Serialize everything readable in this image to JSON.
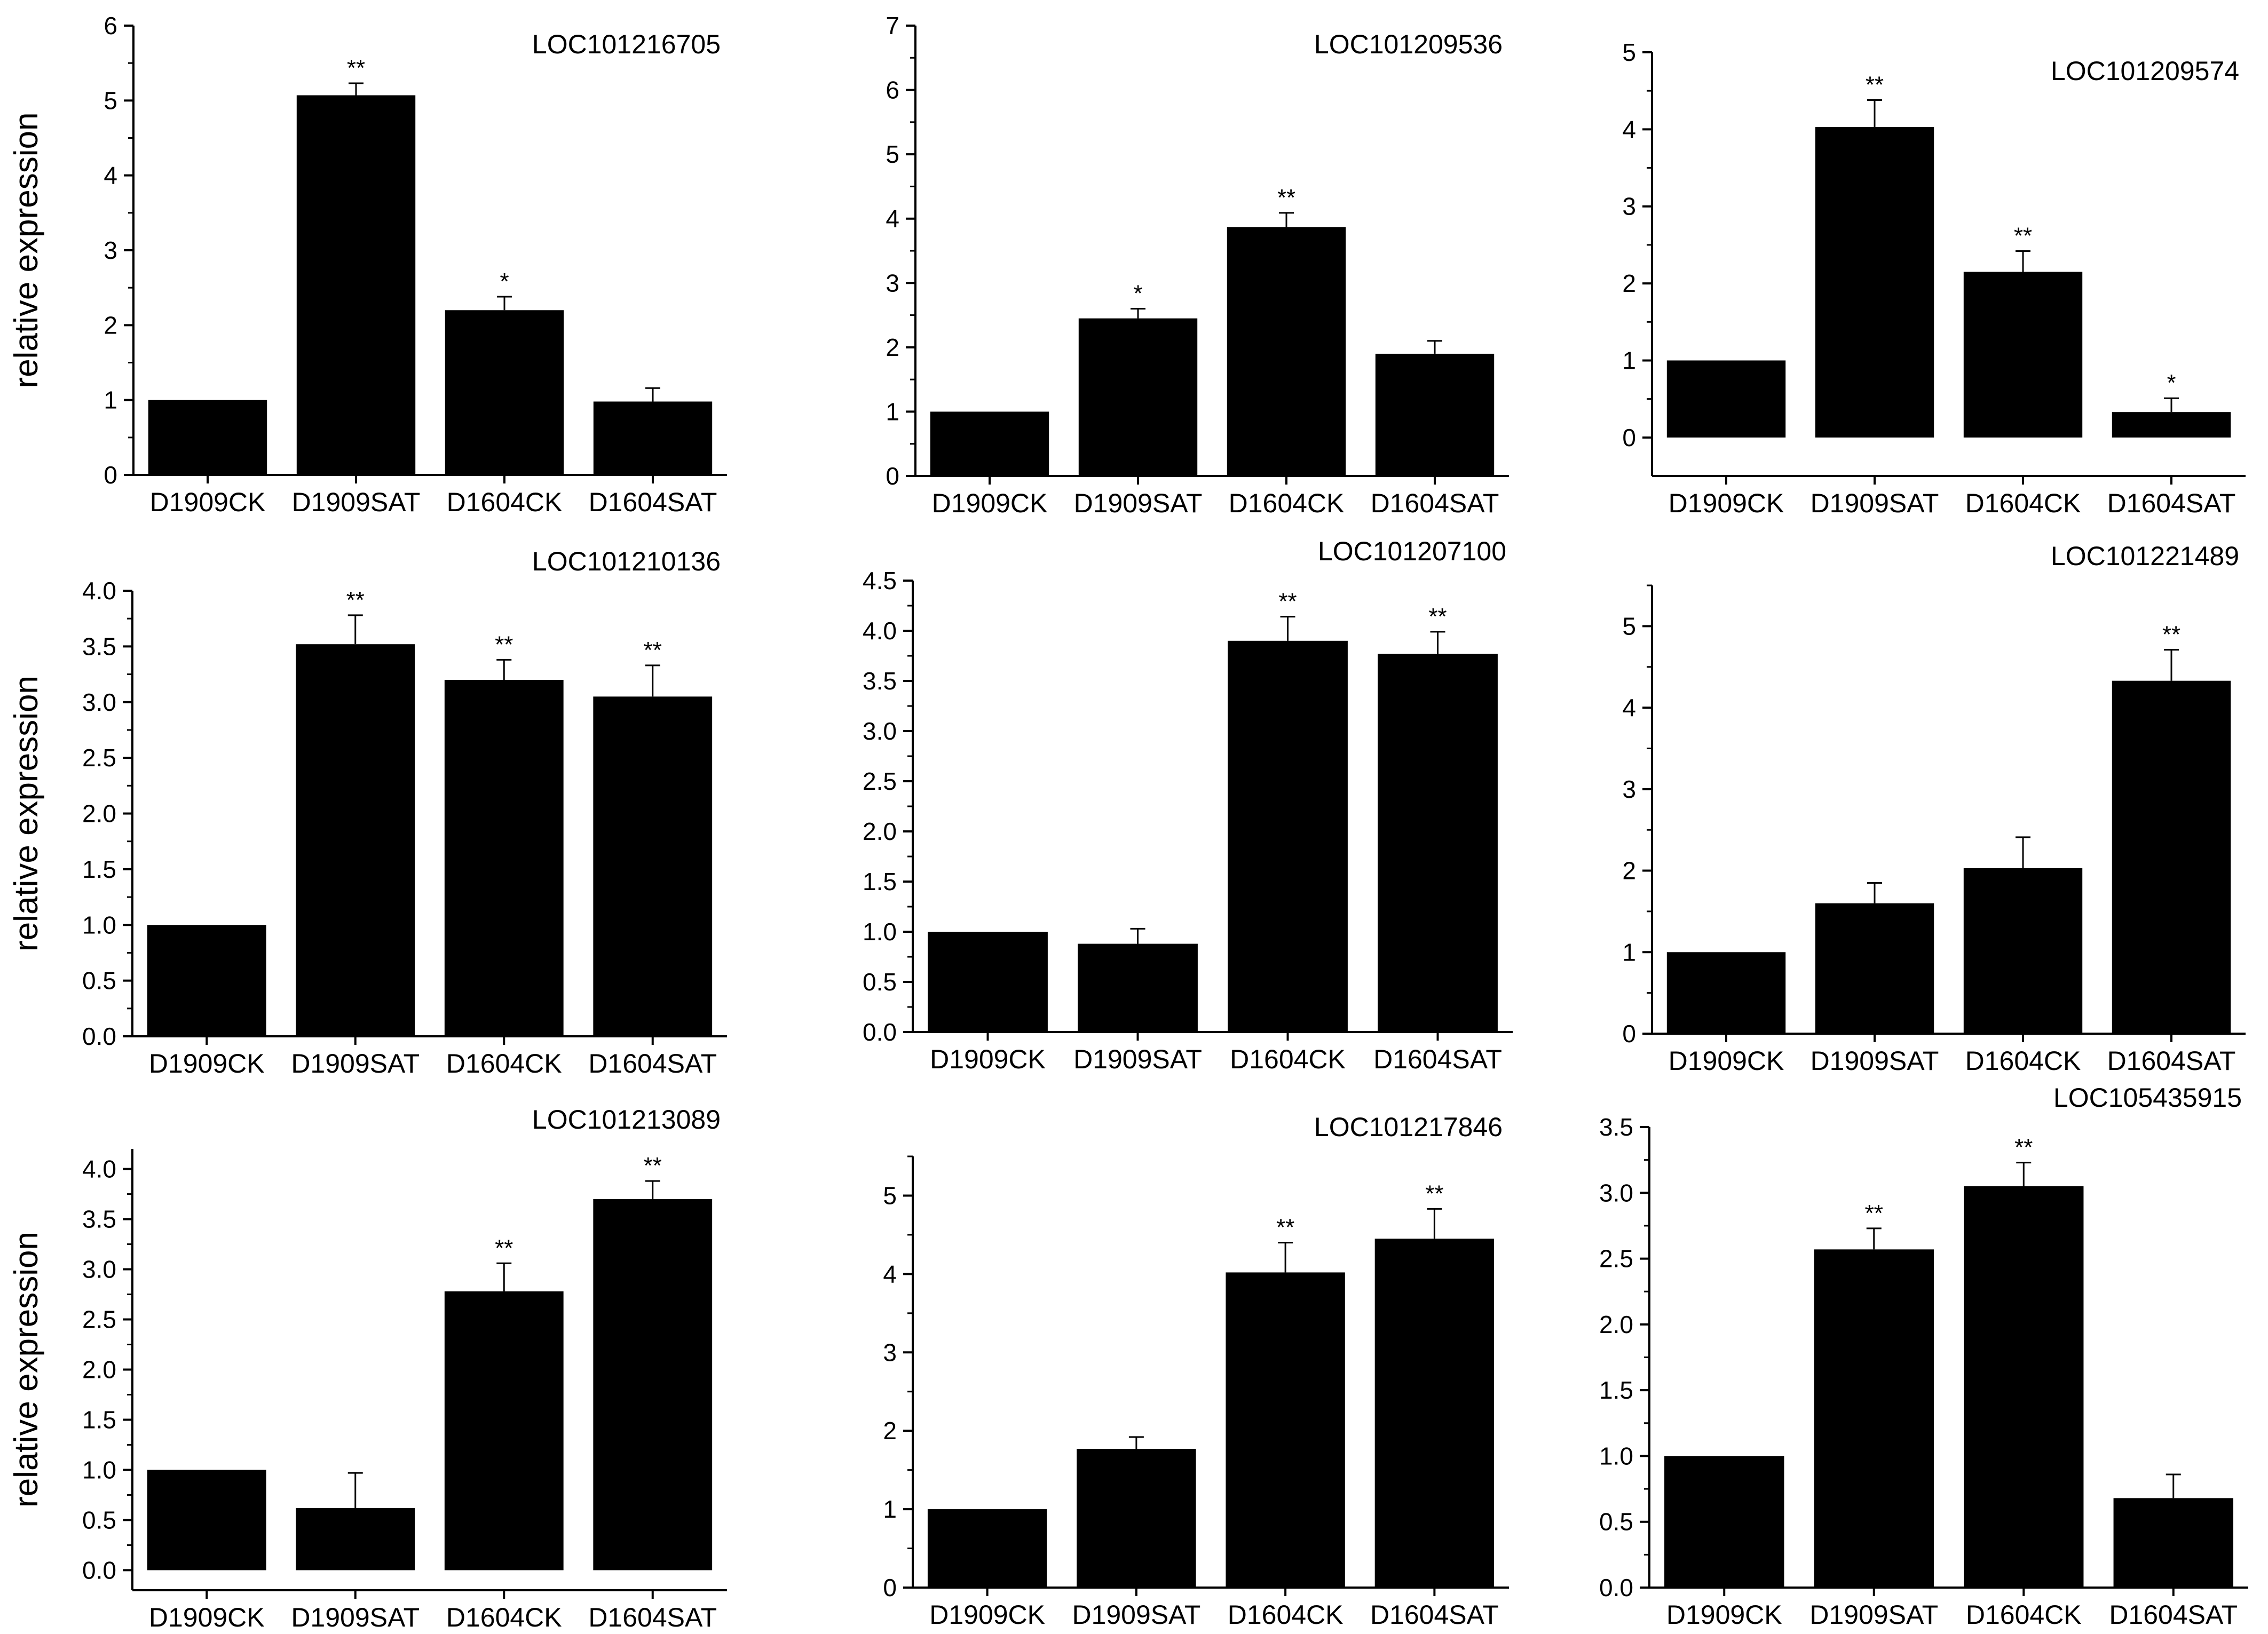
{
  "figure": {
    "ylabel": "relative expression",
    "colors": {
      "bar": "#000000",
      "axis": "#000000",
      "background": "#ffffff"
    }
  },
  "chart_data": [
    {
      "type": "bar",
      "title": "LOC101216705",
      "categories": [
        "D1909CK",
        "D1909SAT",
        "D1604CK",
        "D1604SAT"
      ],
      "values": [
        1.0,
        5.07,
        2.2,
        0.98
      ],
      "errors": [
        0,
        0.16,
        0.18,
        0.18
      ],
      "significance": [
        "",
        "**",
        "*",
        ""
      ],
      "ylim": [
        0,
        6
      ],
      "yticks": [
        "0",
        "1",
        "2",
        "3",
        "4",
        "5",
        "6"
      ],
      "xlabel": "",
      "ylabel": "relative expression"
    },
    {
      "type": "bar",
      "title": "LOC101209536",
      "categories": [
        "D1909CK",
        "D1909SAT",
        "D1604CK",
        "D1604SAT"
      ],
      "values": [
        1.0,
        2.45,
        3.87,
        1.9
      ],
      "errors": [
        0,
        0.15,
        0.22,
        0.2
      ],
      "significance": [
        "",
        "*",
        "**",
        ""
      ],
      "ylim": [
        0,
        7
      ],
      "yticks": [
        "0",
        "1",
        "2",
        "3",
        "4",
        "5",
        "6",
        "7"
      ],
      "xlabel": "",
      "ylabel": ""
    },
    {
      "type": "bar",
      "title": "LOC101209574",
      "categories": [
        "D1909CK",
        "D1909SAT",
        "D1604CK",
        "D1604SAT"
      ],
      "values": [
        1.0,
        4.03,
        2.15,
        0.33
      ],
      "errors": [
        0,
        0.35,
        0.27,
        0.18
      ],
      "significance": [
        "",
        "**",
        "**",
        "*"
      ],
      "ylim": [
        -0.5,
        5
      ],
      "yticks": [
        "0",
        "1",
        "2",
        "3",
        "4",
        "5"
      ],
      "xlabel": "",
      "ylabel": ""
    },
    {
      "type": "bar",
      "title": "LOC101210136",
      "categories": [
        "D1909CK",
        "D1909SAT",
        "D1604CK",
        "D1604SAT"
      ],
      "values": [
        1.0,
        3.52,
        3.2,
        3.05
      ],
      "errors": [
        0,
        0.26,
        0.18,
        0.28
      ],
      "significance": [
        "",
        "**",
        "**",
        "**"
      ],
      "ylim": [
        0,
        4.0
      ],
      "yticks": [
        "0.0",
        "0.5",
        "1.0",
        "1.5",
        "2.0",
        "2.5",
        "3.0",
        "3.5",
        "4.0"
      ],
      "xlabel": "",
      "ylabel": "relative expression"
    },
    {
      "type": "bar",
      "title": "LOC101207100",
      "categories": [
        "D1909CK",
        "D1909SAT",
        "D1604CK",
        "D1604SAT"
      ],
      "values": [
        1.0,
        0.88,
        3.9,
        3.77
      ],
      "errors": [
        0,
        0.15,
        0.24,
        0.22
      ],
      "significance": [
        "",
        "",
        "**",
        "**"
      ],
      "ylim": [
        0,
        4.5
      ],
      "yticks": [
        "0.0",
        "0.5",
        "1.0",
        "1.5",
        "2.0",
        "2.5",
        "3.0",
        "3.5",
        "4.0",
        "4.5"
      ],
      "xlabel": "",
      "ylabel": ""
    },
    {
      "type": "bar",
      "title": "LOC101221489",
      "categories": [
        "D1909CK",
        "D1909SAT",
        "D1604CK",
        "D1604SAT"
      ],
      "values": [
        1.0,
        1.6,
        2.03,
        4.33
      ],
      "errors": [
        0,
        0.25,
        0.38,
        0.38
      ],
      "significance": [
        "",
        "",
        "",
        "**"
      ],
      "ylim": [
        0,
        5.5
      ],
      "yticks": [
        "0",
        "1",
        "2",
        "3",
        "4",
        "5"
      ],
      "xlabel": "",
      "ylabel": ""
    },
    {
      "type": "bar",
      "title": "LOC101213089",
      "categories": [
        "D1909CK",
        "D1909SAT",
        "D1604CK",
        "D1604SAT"
      ],
      "values": [
        1.0,
        0.62,
        2.78,
        3.7
      ],
      "errors": [
        0,
        0.35,
        0.28,
        0.18
      ],
      "significance": [
        "",
        "",
        "**",
        "**"
      ],
      "ylim": [
        -0.2,
        4.2
      ],
      "yticks": [
        "0.0",
        "0.5",
        "1.0",
        "1.5",
        "2.0",
        "2.5",
        "3.0",
        "3.5",
        "4.0"
      ],
      "xlabel": "",
      "ylabel": "relative expression"
    },
    {
      "type": "bar",
      "title": "LOC101217846",
      "categories": [
        "D1909CK",
        "D1909SAT",
        "D1604CK",
        "D1604SAT"
      ],
      "values": [
        1.0,
        1.77,
        4.02,
        4.45
      ],
      "errors": [
        0,
        0.15,
        0.38,
        0.38
      ],
      "significance": [
        "",
        "",
        "**",
        "**"
      ],
      "ylim": [
        0,
        5.5
      ],
      "yticks": [
        "0",
        "1",
        "2",
        "3",
        "4",
        "5"
      ],
      "xlabel": "",
      "ylabel": ""
    },
    {
      "type": "bar",
      "title": "LOC105435915",
      "categories": [
        "D1909CK",
        "D1909SAT",
        "D1604CK",
        "D1604SAT"
      ],
      "values": [
        1.0,
        2.57,
        3.05,
        0.68
      ],
      "errors": [
        0,
        0.16,
        0.18,
        0.18
      ],
      "significance": [
        "",
        "**",
        "**",
        ""
      ],
      "ylim": [
        0,
        3.5
      ],
      "yticks": [
        "0.0",
        "0.5",
        "1.0",
        "1.5",
        "2.0",
        "2.5",
        "3.0",
        "3.5"
      ],
      "xlabel": "",
      "ylabel": ""
    }
  ]
}
